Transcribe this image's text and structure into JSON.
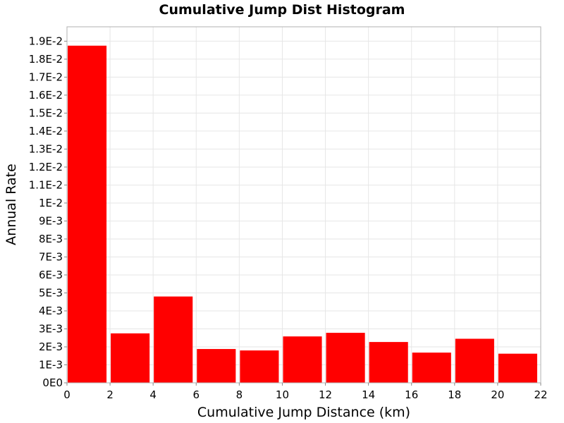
{
  "chart_data": {
    "type": "bar",
    "title": "Cumulative Jump Dist Histogram",
    "xlabel": "Cumulative Jump Distance (km)",
    "ylabel": "Annual Rate",
    "xlim": [
      0,
      22
    ],
    "ylim": [
      0,
      0.0198
    ],
    "grid": true,
    "legend": "none",
    "bar_color": "#ff0000",
    "bins": [
      {
        "x0": 0,
        "x1": 2,
        "value": 0.01875
      },
      {
        "x0": 2,
        "x1": 4,
        "value": 0.00275
      },
      {
        "x0": 4,
        "x1": 6,
        "value": 0.0048
      },
      {
        "x0": 6,
        "x1": 8,
        "value": 0.00188
      },
      {
        "x0": 8,
        "x1": 10,
        "value": 0.0018
      },
      {
        "x0": 10,
        "x1": 12,
        "value": 0.00258
      },
      {
        "x0": 12,
        "x1": 14,
        "value": 0.00278
      },
      {
        "x0": 14,
        "x1": 16,
        "value": 0.00227
      },
      {
        "x0": 16,
        "x1": 18,
        "value": 0.00168
      },
      {
        "x0": 18,
        "x1": 20,
        "value": 0.00245
      },
      {
        "x0": 20,
        "x1": 22,
        "value": 0.00162
      }
    ],
    "x_ticks": [
      {
        "value": 0,
        "label": "0"
      },
      {
        "value": 2,
        "label": "2"
      },
      {
        "value": 4,
        "label": "4"
      },
      {
        "value": 6,
        "label": "6"
      },
      {
        "value": 8,
        "label": "8"
      },
      {
        "value": 10,
        "label": "10"
      },
      {
        "value": 12,
        "label": "12"
      },
      {
        "value": 14,
        "label": "14"
      },
      {
        "value": 16,
        "label": "16"
      },
      {
        "value": 18,
        "label": "18"
      },
      {
        "value": 20,
        "label": "20"
      },
      {
        "value": 22,
        "label": "22"
      }
    ],
    "y_ticks": [
      {
        "value": 0,
        "label": "0E0"
      },
      {
        "value": 0.001,
        "label": "1E-3"
      },
      {
        "value": 0.002,
        "label": "2E-3"
      },
      {
        "value": 0.003,
        "label": "3E-3"
      },
      {
        "value": 0.004,
        "label": "4E-3"
      },
      {
        "value": 0.005,
        "label": "5E-3"
      },
      {
        "value": 0.006,
        "label": "6E-3"
      },
      {
        "value": 0.007,
        "label": "7E-3"
      },
      {
        "value": 0.008,
        "label": "8E-3"
      },
      {
        "value": 0.009,
        "label": "9E-3"
      },
      {
        "value": 0.01,
        "label": "1E-2"
      },
      {
        "value": 0.011,
        "label": "1.1E-2"
      },
      {
        "value": 0.012,
        "label": "1.2E-2"
      },
      {
        "value": 0.013,
        "label": "1.3E-2"
      },
      {
        "value": 0.014,
        "label": "1.4E-2"
      },
      {
        "value": 0.015,
        "label": "1.5E-2"
      },
      {
        "value": 0.016,
        "label": "1.6E-2"
      },
      {
        "value": 0.017,
        "label": "1.7E-2"
      },
      {
        "value": 0.018,
        "label": "1.8E-2"
      },
      {
        "value": 0.019,
        "label": "1.9E-2"
      }
    ]
  }
}
